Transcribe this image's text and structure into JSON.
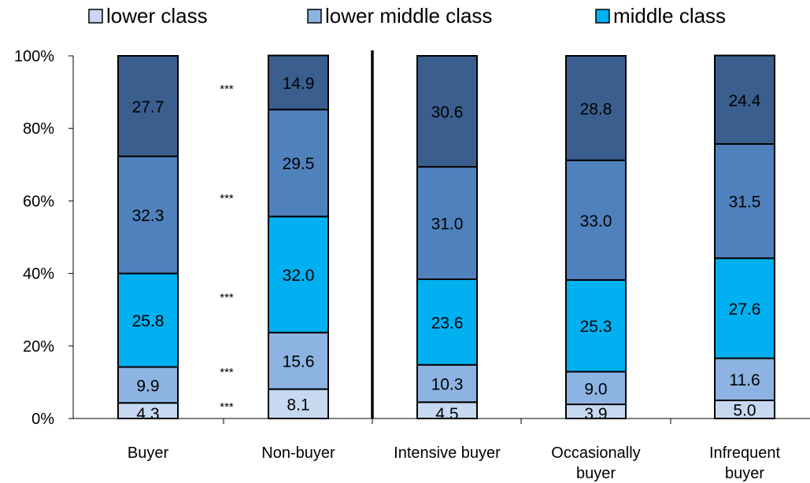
{
  "chart_data": {
    "type": "bar",
    "stacked": true,
    "categories": [
      "Buyer",
      "Non-buyer",
      "Intensive buyer",
      "Occasionally buyer",
      "Infrequent buyer"
    ],
    "category_lines": [
      [
        "Buyer"
      ],
      [
        "Non-buyer"
      ],
      [
        "Intensive buyer"
      ],
      [
        "Occasionally",
        "buyer"
      ],
      [
        "Infrequent",
        "buyer"
      ]
    ],
    "series": [
      {
        "name": "lower class",
        "color": "#c6d9f1",
        "values": [
          4.3,
          8.1,
          4.5,
          3.9,
          5.0
        ]
      },
      {
        "name": "lower middle class",
        "color": "#8db3e2",
        "values": [
          9.9,
          15.6,
          10.3,
          9.0,
          11.6
        ]
      },
      {
        "name": "middle class",
        "color": "#00b0f0",
        "values": [
          25.8,
          32.0,
          23.6,
          25.3,
          27.6
        ]
      },
      {
        "name": "",
        "color": "#4f81bd",
        "values": [
          32.3,
          29.5,
          31.0,
          33.0,
          31.5
        ]
      },
      {
        "name": "",
        "color": "#3a5f8f",
        "values": [
          27.7,
          14.9,
          30.6,
          28.8,
          24.4
        ]
      }
    ],
    "yticks": [
      "0%",
      "20%",
      "40%",
      "60%",
      "80%",
      "100%"
    ],
    "ylim": [
      0,
      100
    ],
    "significance_marks": [
      "***",
      "***",
      "***",
      "***",
      "***"
    ],
    "legend_position": "top"
  }
}
